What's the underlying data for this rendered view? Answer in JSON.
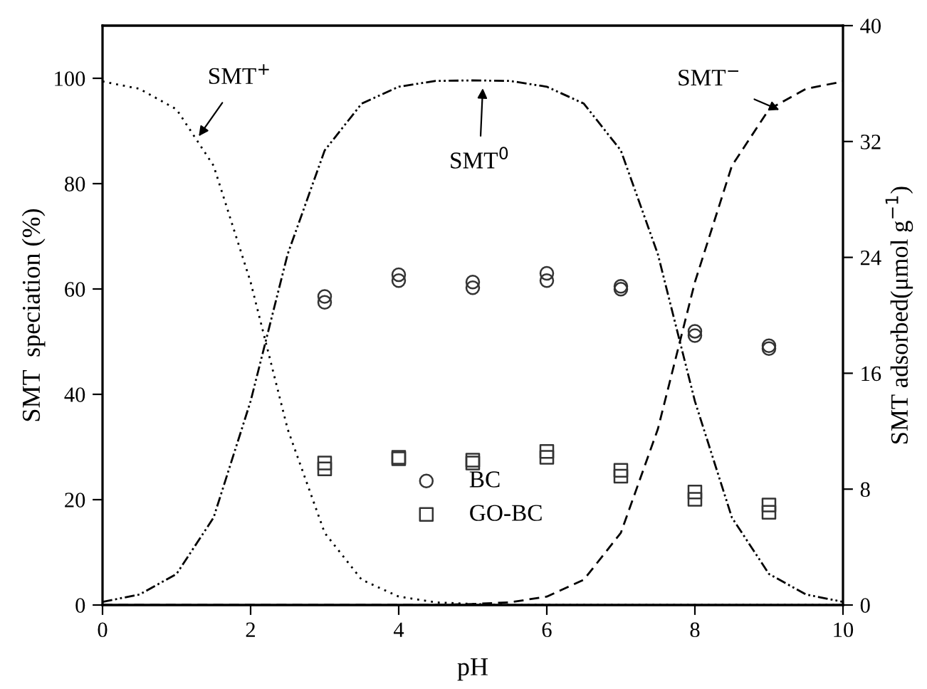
{
  "chart_data": {
    "type": "line",
    "xlabel": "pH",
    "ylabel": "SMT  speciation (%)",
    "y2label": "SMT adsorbed(μmol g$^{−1}$)",
    "xlim": [
      0,
      10
    ],
    "xticks": [
      0,
      2,
      4,
      6,
      8,
      10
    ],
    "ylim": [
      0,
      110
    ],
    "yticks": [
      0,
      20,
      40,
      60,
      80,
      100
    ],
    "y2lim": [
      0,
      40
    ],
    "y2ticks": [
      0,
      8,
      16,
      24,
      32,
      40
    ],
    "grid": false,
    "legend": "bottom",
    "series": [
      {
        "color": "#000000",
        "line_style": "dotted",
        "marker": "none",
        "x": [
          0,
          0.5,
          1,
          1.5,
          2,
          2.5,
          3,
          3.5,
          4,
          4.5,
          5,
          5.5,
          6,
          7,
          8,
          9,
          10
        ],
        "values": [
          99.4,
          98.0,
          94.1,
          83.4,
          61.3,
          33.4,
          13.7,
          4.8,
          1.6,
          0.5,
          0.2,
          0,
          0,
          0,
          0,
          0,
          0
        ]
      },
      {
        "color": "#000000",
        "line_style": "dashdot",
        "marker": "none",
        "x": [
          0,
          0.5,
          1,
          1.5,
          2,
          2.5,
          3,
          3.5,
          4,
          4.5,
          5,
          5.5,
          6,
          6.5,
          7,
          7.5,
          8,
          8.5,
          9,
          9.5,
          10
        ],
        "values": [
          0.6,
          2.0,
          5.9,
          16.6,
          38.7,
          66.6,
          86.3,
          95.2,
          98.4,
          99.5,
          99.6,
          99.5,
          98.4,
          95.2,
          86.3,
          66.6,
          38.7,
          16.6,
          5.9,
          2.0,
          0.6
        ]
      },
      {
        "color": "#000000",
        "line_style": "dashed",
        "marker": "none",
        "x": [
          0,
          1,
          2,
          3,
          4,
          4.5,
          5,
          5.5,
          6,
          6.5,
          7,
          7.5,
          8,
          8.5,
          9,
          9.5,
          10
        ],
        "values": [
          0,
          0,
          0,
          0,
          0,
          0,
          0.2,
          0.5,
          1.6,
          4.8,
          13.7,
          33.4,
          61.3,
          83.4,
          94.1,
          98.0,
          99.4
        ]
      },
      {
        "type": "scatter",
        "name": "BC",
        "axis": "y2",
        "color": "#333333",
        "marker": "circle",
        "x": [
          3,
          3,
          4,
          4,
          5,
          5,
          6,
          6,
          7,
          7,
          8,
          8,
          9,
          9
        ],
        "values": [
          21.3,
          20.9,
          22.8,
          22.4,
          22.3,
          21.9,
          22.9,
          22.4,
          22.0,
          21.8,
          18.9,
          18.6,
          17.9,
          17.7
        ]
      },
      {
        "type": "scatter",
        "name": "GO-BC",
        "axis": "y2",
        "color": "#333333",
        "marker": "square",
        "x": [
          3,
          3,
          4,
          4,
          5,
          5,
          6,
          6,
          7,
          7,
          8,
          8,
          9,
          9
        ],
        "values": [
          9.8,
          9.4,
          10.2,
          10.1,
          10.0,
          9.8,
          10.6,
          10.2,
          9.3,
          8.9,
          7.8,
          7.3,
          6.9,
          6.4
        ]
      }
    ],
    "annotations": [
      {
        "text": "SMT$^{+}$",
        "x": 1.3,
        "y": 89
      },
      {
        "text": "SMT$^{0}$",
        "x": 5.14,
        "y": 99.6
      },
      {
        "text": "SMT$^{−}$",
        "x": 9.14,
        "y": 94
      }
    ]
  }
}
